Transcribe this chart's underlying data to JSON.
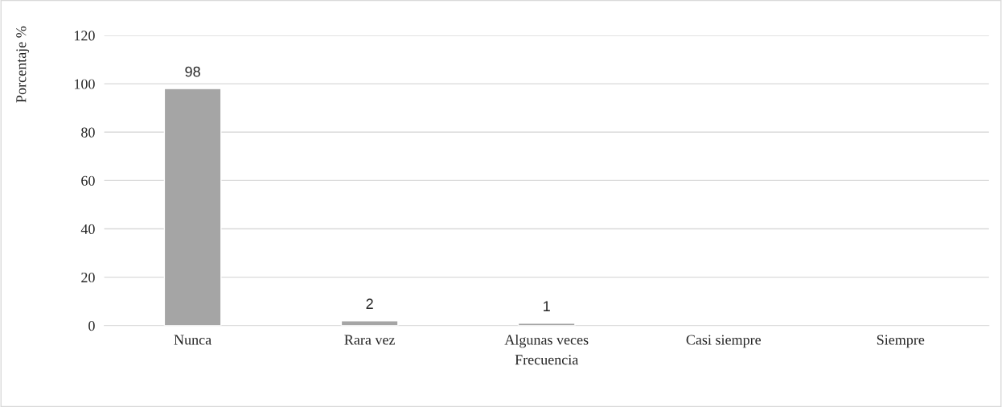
{
  "chart_data": {
    "type": "bar",
    "xlabel": "Frecuencia",
    "ylabel": "Porcentaje %",
    "categories": [
      "Nunca",
      "Rara vez",
      "Algunas veces",
      "Casi siempre",
      "Siempre"
    ],
    "values": [
      98,
      2,
      1,
      null,
      null
    ],
    "value_labels": [
      "98",
      "2",
      "1",
      null,
      null
    ],
    "color": "#a5a5a5",
    "ylim": [
      0,
      120
    ],
    "yticks": [
      0,
      20,
      40,
      60,
      80,
      100,
      120
    ],
    "grid": "y"
  }
}
